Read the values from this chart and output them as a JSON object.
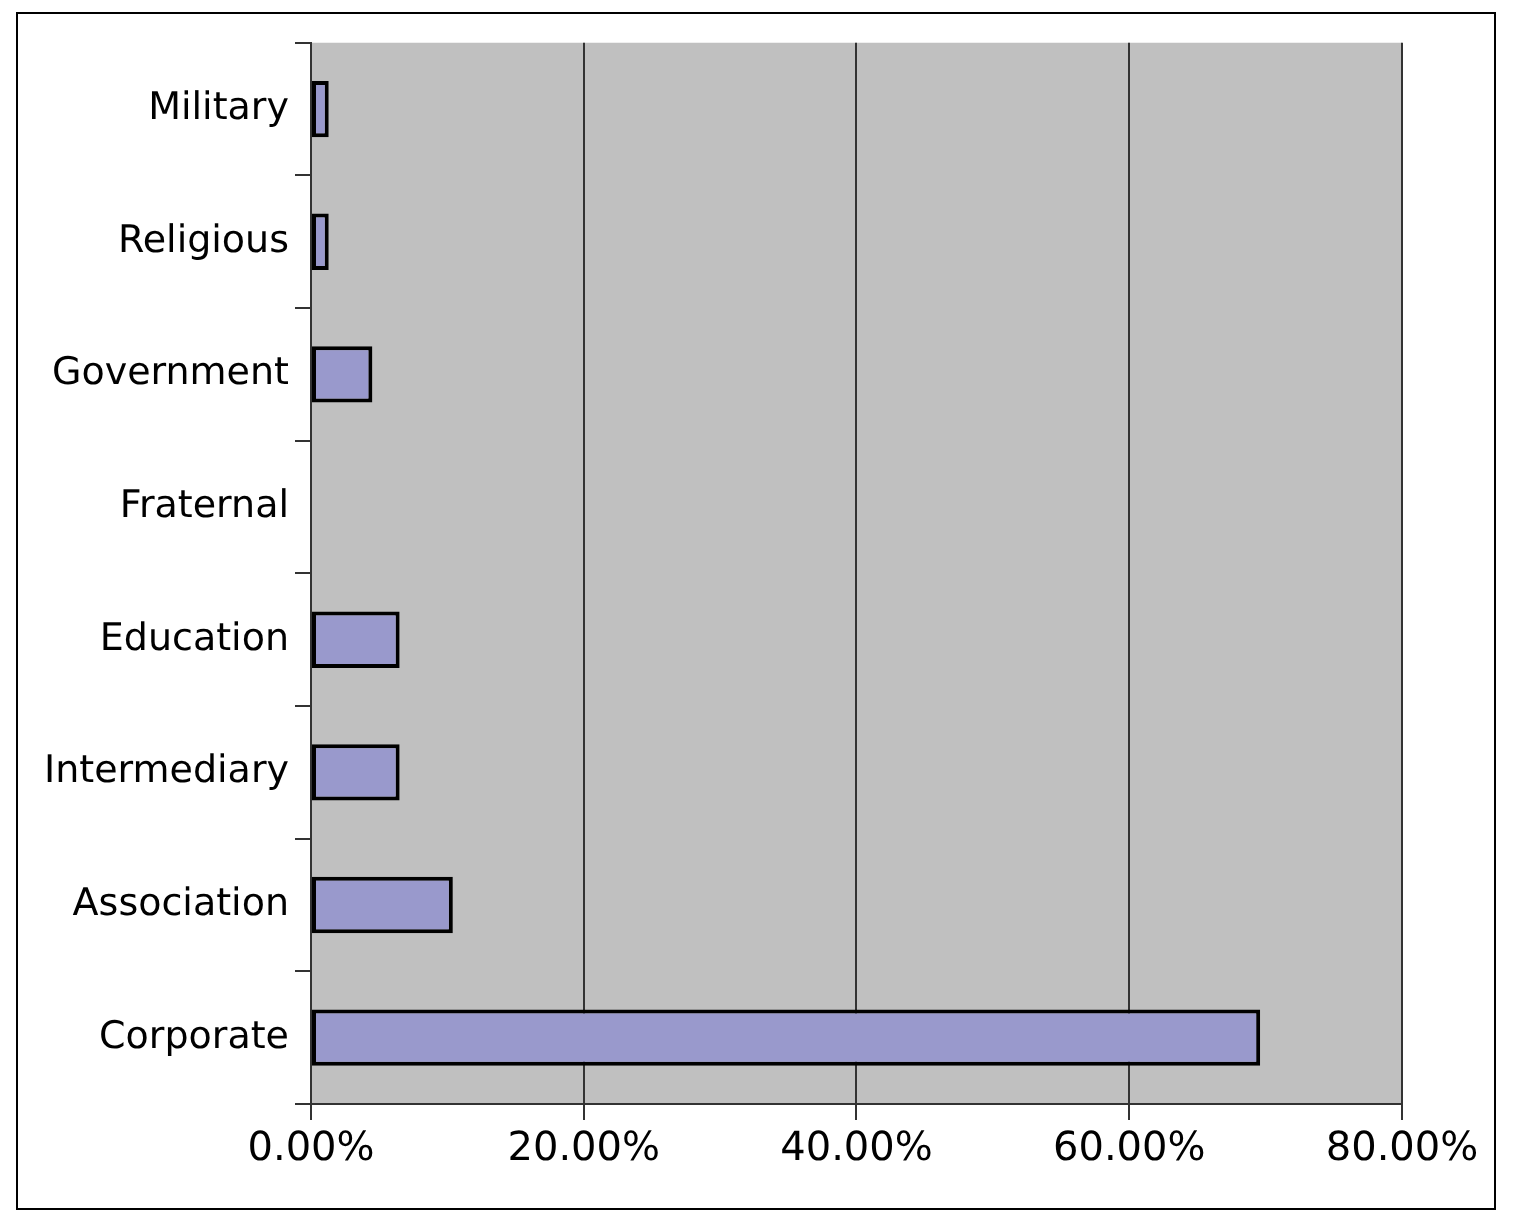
{
  "chart_data": {
    "type": "bar",
    "orientation": "horizontal",
    "categories": [
      "Military",
      "Religious",
      "Government",
      "Fraternal",
      "Education",
      "Intermediary",
      "Association",
      "Corporate"
    ],
    "values": [
      1.3,
      1.3,
      4.5,
      0,
      6.5,
      6.5,
      10.4,
      69.6
    ],
    "color": "#9999cc",
    "xlim": [
      0,
      80
    ],
    "xticks": [
      {
        "value": 0,
        "label": "0.00%"
      },
      {
        "value": 20,
        "label": "20.00%"
      },
      {
        "value": 40,
        "label": "40.00%"
      },
      {
        "value": 60,
        "label": "60.00%"
      },
      {
        "value": 80,
        "label": "80.00%"
      }
    ],
    "grid": "x",
    "legend": false
  }
}
